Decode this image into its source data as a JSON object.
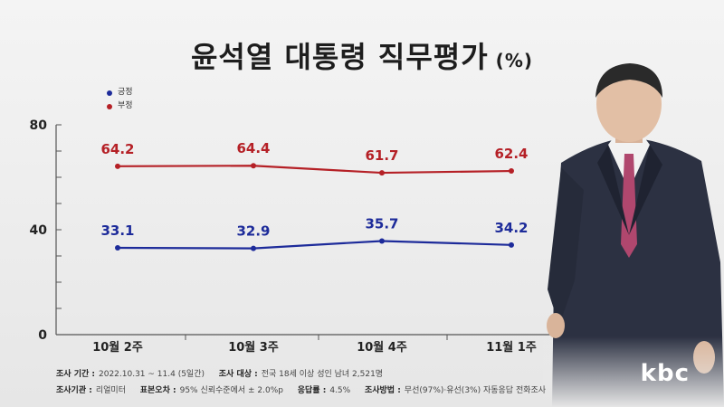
{
  "title": "윤석열 대통령 직무평가",
  "title_unit": "(%)",
  "legend": [
    {
      "label": "긍정",
      "color": "#1d2b9a"
    },
    {
      "label": "부정",
      "color": "#b52026"
    }
  ],
  "footer": {
    "period_label": "조사 기간 :",
    "period_value": "2022.10.31 ~ 11.4 (5일간)",
    "target_label": "조사 대상 :",
    "target_value": "전국 18세 이상 성인 남녀 2,521명",
    "org_label": "조사기관 :",
    "org_value": "리얼미터",
    "error_label": "표본오차 :",
    "error_value": "95% 신뢰수준에서 ± 2.0%p",
    "response_label": "응답률 :",
    "response_value": "4.5%",
    "method_label": "조사방법 :",
    "method_value": "무선(97%)·유선(3%) 자동응답 전화조사"
  },
  "logo": "kbc",
  "chart_data": {
    "type": "line",
    "categories": [
      "10월 2주",
      "10월 3주",
      "10월 4주",
      "11월 1주"
    ],
    "series": [
      {
        "name": "긍정",
        "values": [
          33.1,
          32.9,
          35.7,
          34.2
        ],
        "color": "#1d2b9a"
      },
      {
        "name": "부정",
        "values": [
          64.2,
          64.4,
          61.7,
          62.4
        ],
        "color": "#b52026"
      }
    ],
    "ylim": [
      0,
      80
    ],
    "yticks": [
      "0",
      "40",
      "80"
    ],
    "grid": false
  }
}
